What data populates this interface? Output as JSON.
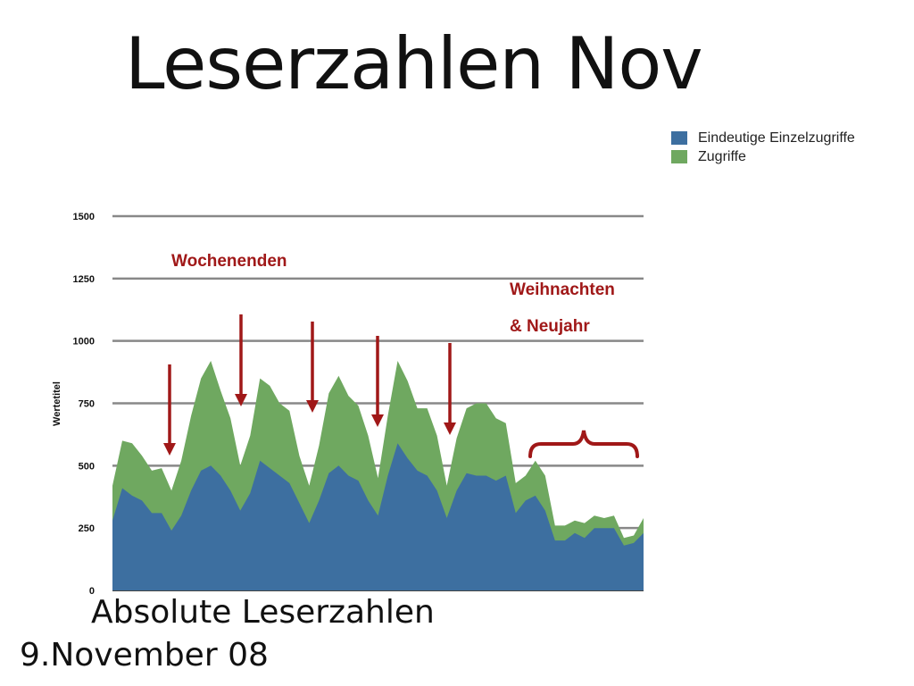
{
  "slide": {
    "title": "Leserzahlen Nov",
    "subtitle": "Absolute Leserzahlen",
    "date": "9.November 08"
  },
  "legend": [
    {
      "label": "Eindeutige Einzelzugriffe",
      "color": "#3d6fa0"
    },
    {
      "label": "Zugriffe",
      "color": "#6fa860"
    }
  ],
  "annotations": {
    "weekends": "Wochenenden",
    "holidays_line1": "Weihnachten",
    "holidays_line2": "& Neujahr",
    "color": "#a01818"
  },
  "chart_data": {
    "type": "area",
    "title": "",
    "xlabel": "",
    "ylabel": "Wertetitel",
    "ylim": [
      0,
      1500
    ],
    "yticks": [
      0,
      250,
      500,
      750,
      1000,
      1250,
      1500
    ],
    "grid": true,
    "legend_position": "top-right",
    "stacked": false,
    "series": [
      {
        "name": "Zugriffe",
        "color": "#6fa860",
        "values": [
          420,
          600,
          590,
          540,
          480,
          490,
          400,
          520,
          700,
          850,
          920,
          800,
          690,
          500,
          620,
          850,
          820,
          750,
          720,
          540,
          420,
          580,
          790,
          860,
          780,
          740,
          620,
          450,
          700,
          920,
          840,
          730,
          730,
          620,
          420,
          610,
          730,
          750,
          750,
          690,
          670,
          430,
          460,
          520,
          460,
          260,
          260,
          280,
          270,
          300,
          290,
          300,
          210,
          220,
          290
        ]
      },
      {
        "name": "Eindeutige Einzelzugriffe",
        "color": "#3d6fa0",
        "values": [
          280,
          410,
          380,
          360,
          310,
          310,
          240,
          300,
          400,
          480,
          500,
          460,
          400,
          320,
          390,
          520,
          490,
          460,
          430,
          350,
          270,
          360,
          470,
          500,
          460,
          440,
          360,
          300,
          460,
          590,
          530,
          480,
          460,
          400,
          290,
          400,
          470,
          460,
          460,
          440,
          460,
          310,
          360,
          380,
          320,
          200,
          200,
          230,
          210,
          250,
          250,
          250,
          180,
          190,
          230
        ]
      }
    ]
  }
}
